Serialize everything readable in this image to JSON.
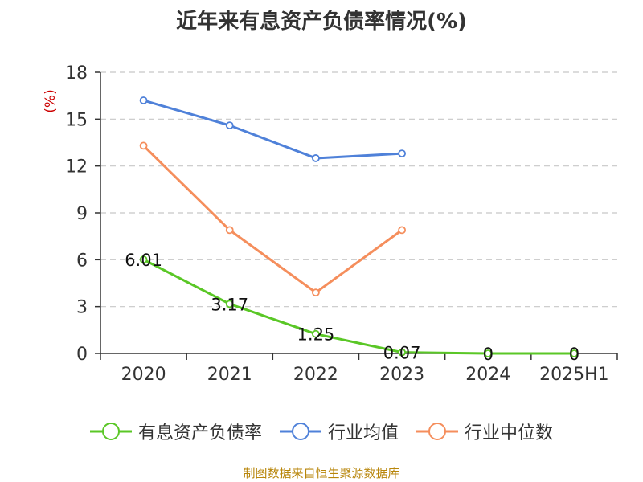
{
  "title": "近年来有息资产负债率情况(%)",
  "source": "制图数据来自恒生聚源数据库",
  "chart_data": {
    "type": "line",
    "title": "近年来有息资产负债率情况(%)",
    "ylabel": "(%)",
    "xlabel": "",
    "categories": [
      "2020",
      "2021",
      "2022",
      "2023",
      "2024",
      "2025H1"
    ],
    "ylim": [
      0,
      18
    ],
    "yticks": [
      0,
      3,
      6,
      9,
      12,
      15,
      18
    ],
    "grid": true,
    "legend_position": "bottom",
    "series": [
      {
        "name": "有息资产负债率",
        "color": "#5ac726",
        "values": [
          6.01,
          3.17,
          1.25,
          0.07,
          0,
          0
        ],
        "labels": [
          "6.01",
          "3.17",
          "1.25",
          "0.07",
          "0",
          "0"
        ]
      },
      {
        "name": "行业均值",
        "color": "#4f81d9",
        "values": [
          16.2,
          14.6,
          12.5,
          12.8,
          null,
          null
        ]
      },
      {
        "name": "行业中位数",
        "color": "#f58e5c",
        "values": [
          13.3,
          7.9,
          3.9,
          7.9,
          null,
          null
        ]
      }
    ]
  }
}
